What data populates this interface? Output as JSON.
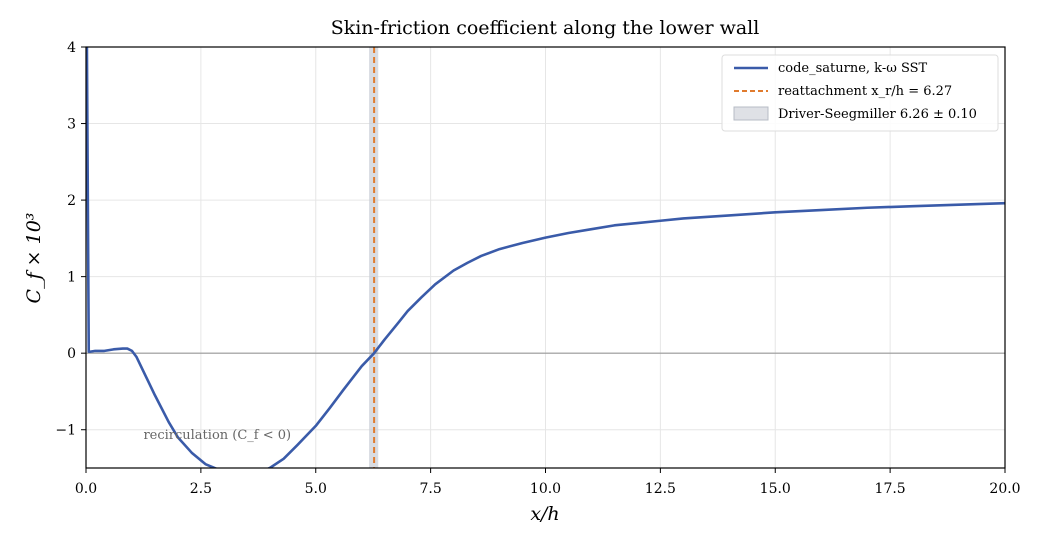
{
  "chart_data": {
    "type": "line",
    "title": "Skin-friction coefficient along the lower wall",
    "xlabel": "x/h",
    "ylabel": "C_f × 10³",
    "xlim": [
      0,
      20
    ],
    "ylim": [
      -1.5,
      4
    ],
    "xticks": [
      0,
      2.5,
      5,
      7.5,
      10,
      12.5,
      15,
      17.5,
      20
    ],
    "xtick_labels": [
      "0.0",
      "2.5",
      "5.0",
      "7.5",
      "10.0",
      "12.5",
      "15.0",
      "17.5",
      "20.0"
    ],
    "yticks": [
      -1,
      0,
      1,
      2,
      3,
      4
    ],
    "ytick_labels": [
      "−1",
      "0",
      "1",
      "2",
      "3",
      "4"
    ],
    "grid": true,
    "legend_position": "top-right",
    "colors": {
      "series": "#3a5ba9",
      "reattachment": "#e07b2e",
      "band": "#c9cdd6",
      "zero_line": "#999999"
    },
    "series": [
      {
        "name": "code_saturne, k-ω SST",
        "x": [
          0.0,
          0.02,
          0.04,
          0.06,
          0.1,
          0.2,
          0.4,
          0.6,
          0.8,
          0.9,
          1.0,
          1.1,
          1.3,
          1.5,
          1.8,
          2.0,
          2.3,
          2.6,
          3.0,
          3.3,
          3.5,
          3.8,
          4.0,
          4.3,
          4.6,
          5.0,
          5.3,
          5.6,
          6.0,
          6.27,
          6.5,
          6.8,
          7.0,
          7.3,
          7.6,
          8.0,
          8.3,
          8.6,
          9.0,
          9.5,
          10.0,
          10.5,
          11.0,
          11.5,
          12.0,
          12.5,
          13.0,
          14.0,
          15.0,
          16.0,
          17.0,
          18.0,
          19.0,
          20.0
        ],
        "y": [
          4.0,
          4.0,
          2.0,
          0.02,
          0.02,
          0.03,
          0.03,
          0.05,
          0.06,
          0.06,
          0.03,
          -0.05,
          -0.3,
          -0.55,
          -0.9,
          -1.1,
          -1.3,
          -1.45,
          -1.55,
          -1.58,
          -1.58,
          -1.55,
          -1.5,
          -1.38,
          -1.2,
          -0.95,
          -0.72,
          -0.48,
          -0.17,
          0.0,
          0.18,
          0.4,
          0.55,
          0.73,
          0.9,
          1.08,
          1.18,
          1.27,
          1.36,
          1.44,
          1.51,
          1.57,
          1.62,
          1.67,
          1.7,
          1.73,
          1.76,
          1.8,
          1.84,
          1.87,
          1.9,
          1.92,
          1.94,
          1.96
        ]
      }
    ],
    "reattachment": {
      "name": "reattachment x_r/h = 6.27",
      "x": 6.27
    },
    "reference_band": {
      "name": "Driver-Seegmiller 6.26 ± 0.10",
      "center": 6.26,
      "halfwidth": 0.1
    },
    "annotation": {
      "text": "recirculation (C_f < 0)",
      "x": 1.25,
      "y": -1.12
    }
  }
}
